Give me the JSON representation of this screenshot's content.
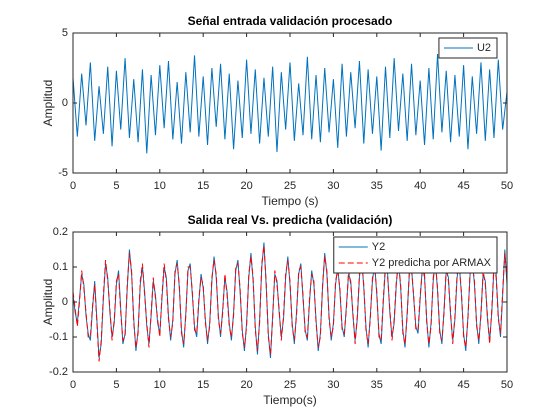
{
  "chart_data": [
    {
      "type": "line",
      "title": "Señal entrada validación procesado",
      "xlabel": "Tiempo (s)",
      "ylabel": "Amplitud",
      "xlim": [
        0,
        50
      ],
      "xticks": [
        0,
        5,
        10,
        15,
        20,
        25,
        30,
        35,
        40,
        45,
        50
      ],
      "ylim": [
        -5,
        5
      ],
      "yticks": [
        -5,
        0,
        5
      ],
      "legend": "northeast",
      "x": [
        0,
        0.5,
        1,
        1.5,
        2,
        2.5,
        3,
        3.5,
        4,
        4.5,
        5,
        5.5,
        6,
        6.5,
        7,
        7.5,
        8,
        8.5,
        9,
        9.5,
        10,
        10.5,
        11,
        11.5,
        12,
        12.5,
        13,
        13.5,
        14,
        14.5,
        15,
        15.5,
        16,
        16.5,
        17,
        17.5,
        18,
        18.5,
        19,
        19.5,
        20,
        20.5,
        21,
        21.5,
        22,
        22.5,
        23,
        23.5,
        24,
        24.5,
        25,
        25.5,
        26,
        26.5,
        27,
        27.5,
        28,
        28.5,
        29,
        29.5,
        30,
        30.5,
        31,
        31.5,
        32,
        32.5,
        33,
        33.5,
        34,
        34.5,
        35,
        35.5,
        36,
        36.5,
        37,
        37.5,
        38,
        38.5,
        39,
        39.5,
        40,
        40.5,
        41,
        41.5,
        42,
        42.5,
        43,
        43.5,
        44,
        44.5,
        45,
        45.5,
        46,
        46.5,
        47,
        47.5,
        48,
        48.5,
        49,
        49.5,
        50
      ],
      "series": [
        {
          "name": "U2",
          "color": "#0072BD",
          "line_style": "-",
          "values": [
            1.8,
            -2.4,
            2.1,
            -1.6,
            2.9,
            -2.7,
            1.2,
            -2.2,
            2.6,
            -3.1,
            2.3,
            -1.9,
            3.2,
            -2.5,
            1.7,
            -2.8,
            2.4,
            -3.6,
            2.0,
            -2.3,
            2.7,
            -1.8,
            3.0,
            -2.6,
            1.5,
            -2.9,
            2.2,
            -2.1,
            3.4,
            -2.4,
            1.9,
            -3.0,
            2.5,
            -1.7,
            2.8,
            -2.6,
            2.1,
            -3.3,
            1.6,
            -2.5,
            3.1,
            -2.2,
            2.4,
            -2.9,
            1.8,
            -2.4,
            2.6,
            -3.5,
            2.2,
            -1.9,
            2.9,
            -2.7,
            1.4,
            -2.3,
            3.3,
            -2.6,
            2.0,
            -2.8,
            2.5,
            -2.1,
            1.7,
            -3.2,
            2.8,
            -2.4,
            2.2,
            -1.8,
            3.0,
            -2.9,
            2.4,
            -2.2,
            1.9,
            -3.4,
            2.6,
            -2.5,
            3.2,
            -2.0,
            2.1,
            -2.7,
            2.8,
            -2.3,
            1.6,
            -3.0,
            2.5,
            -2.6,
            3.5,
            -2.1,
            2.3,
            -2.8,
            2.0,
            -2.4,
            2.7,
            -3.3,
            1.9,
            -2.2,
            2.9,
            -2.7,
            2.4,
            -2.5,
            3.1,
            -1.9,
            0.8
          ]
        }
      ]
    },
    {
      "type": "line",
      "title": "Salida real Vs. predicha (validación)",
      "xlabel": "Tiempo(s)",
      "ylabel": "Amplitud",
      "xlim": [
        0,
        50
      ],
      "xticks": [
        0,
        5,
        10,
        15,
        20,
        25,
        30,
        35,
        40,
        45,
        50
      ],
      "ylim": [
        -0.2,
        0.2
      ],
      "yticks": [
        -0.2,
        -0.1,
        0,
        0.1,
        0.2
      ],
      "legend": "northeast",
      "x": [
        0,
        0.25,
        0.5,
        0.75,
        1,
        1.25,
        1.5,
        1.75,
        2,
        2.25,
        2.5,
        2.75,
        3,
        3.25,
        3.5,
        3.75,
        4,
        4.25,
        4.5,
        4.75,
        5,
        5.25,
        5.5,
        5.75,
        6,
        6.25,
        6.5,
        6.75,
        7,
        7.25,
        7.5,
        7.75,
        8,
        8.25,
        8.5,
        8.75,
        9,
        9.25,
        9.5,
        9.75,
        10,
        10.25,
        10.5,
        10.75,
        11,
        11.25,
        11.5,
        11.75,
        12,
        12.25,
        12.5,
        12.75,
        13,
        13.25,
        13.5,
        13.75,
        14,
        14.25,
        14.5,
        14.75,
        15,
        15.25,
        15.5,
        15.75,
        16,
        16.25,
        16.5,
        16.75,
        17,
        17.25,
        17.5,
        17.75,
        18,
        18.25,
        18.5,
        18.75,
        19,
        19.25,
        19.5,
        19.75,
        20,
        20.25,
        20.5,
        20.75,
        21,
        21.25,
        21.5,
        21.75,
        22,
        22.25,
        22.5,
        22.75,
        23,
        23.25,
        23.5,
        23.75,
        24,
        24.25,
        24.5,
        24.75,
        25,
        25.25,
        25.5,
        25.75,
        26,
        26.25,
        26.5,
        26.75,
        27,
        27.25,
        27.5,
        27.75,
        28,
        28.25,
        28.5,
        28.75,
        29,
        29.25,
        29.5,
        29.75,
        30,
        30.25,
        30.5,
        30.75,
        31,
        31.25,
        31.5,
        31.75,
        32,
        32.25,
        32.5,
        32.75,
        33,
        33.25,
        33.5,
        33.75,
        34,
        34.25,
        34.5,
        34.75,
        35,
        35.25,
        35.5,
        35.75,
        36,
        36.25,
        36.5,
        36.75,
        37,
        37.25,
        37.5,
        37.75,
        38,
        38.25,
        38.5,
        38.75,
        39,
        39.25,
        39.5,
        39.75,
        40,
        40.25,
        40.5,
        40.75,
        41,
        41.25,
        41.5,
        41.75,
        42,
        42.25,
        42.5,
        42.75,
        43,
        43.25,
        43.5,
        43.75,
        44,
        44.25,
        44.5,
        44.75,
        45,
        45.25,
        45.5,
        45.75,
        46,
        46.25,
        46.5,
        46.75,
        47,
        47.25,
        47.5,
        47.75,
        48,
        48.25,
        48.5,
        48.75,
        49,
        49.25,
        49.5,
        49.75,
        50
      ],
      "series": [
        {
          "name": "Y2",
          "color": "#0072BD",
          "line_style": "-",
          "values": [
            0.02,
            -0.03,
            -0.06,
            0.01,
            0.08,
            0.05,
            -0.04,
            -0.09,
            -0.11,
            -0.02,
            0.06,
            -0.05,
            -0.16,
            -0.12,
            0.01,
            0.11,
            0.07,
            -0.03,
            -0.1,
            -0.06,
            0.05,
            0.09,
            -0.02,
            -0.12,
            -0.09,
            0.04,
            0.15,
            0.08,
            -0.05,
            -0.14,
            -0.08,
            0.05,
            0.1,
            0.03,
            -0.07,
            -0.12,
            -0.04,
            0.06,
            0.02,
            -0.06,
            -0.09,
            0.01,
            0.1,
            0.07,
            -0.04,
            -0.11,
            -0.05,
            0.08,
            0.12,
            0.04,
            -0.08,
            -0.13,
            -0.03,
            0.09,
            0.11,
            0.02,
            -0.07,
            -0.1,
            0.0,
            0.08,
            0.04,
            -0.05,
            -0.12,
            -0.06,
            0.06,
            0.13,
            0.07,
            -0.04,
            -0.1,
            -0.02,
            0.07,
            0.03,
            -0.06,
            -0.11,
            -0.03,
            0.09,
            0.12,
            0.03,
            -0.08,
            -0.14,
            -0.06,
            0.07,
            0.14,
            0.06,
            -0.07,
            -0.15,
            -0.05,
            0.1,
            0.17,
            0.05,
            -0.09,
            -0.16,
            -0.04,
            0.08,
            0.06,
            -0.03,
            -0.1,
            -0.05,
            0.07,
            0.13,
            0.05,
            -0.06,
            -0.12,
            -0.03,
            0.08,
            0.11,
            0.01,
            -0.08,
            -0.11,
            0.0,
            0.09,
            0.05,
            -0.05,
            -0.14,
            -0.09,
            0.04,
            0.14,
            0.08,
            -0.04,
            -0.11,
            -0.06,
            0.05,
            0.1,
            0.03,
            -0.07,
            -0.1,
            -0.01,
            0.08,
            0.06,
            -0.04,
            -0.11,
            -0.05,
            0.07,
            0.13,
            0.04,
            -0.07,
            -0.13,
            -0.04,
            0.06,
            0.11,
            0.02,
            -0.09,
            -0.12,
            0.0,
            0.1,
            0.08,
            -0.03,
            -0.1,
            -0.06,
            0.05,
            0.12,
            0.04,
            -0.08,
            -0.13,
            -0.03,
            0.08,
            0.1,
            0.01,
            -0.07,
            -0.09,
            0.01,
            0.1,
            0.07,
            -0.05,
            -0.13,
            -0.06,
            0.06,
            0.12,
            0.03,
            -0.08,
            -0.12,
            -0.02,
            0.09,
            0.07,
            -0.04,
            -0.11,
            -0.05,
            0.07,
            0.11,
            0.02,
            -0.09,
            -0.14,
            -0.04,
            0.08,
            0.12,
            0.05,
            -0.06,
            -0.12,
            -0.03,
            0.08,
            0.06,
            -0.05,
            -0.11,
            -0.03,
            0.1,
            0.08,
            -0.04,
            -0.1,
            0.02,
            0.15,
            0.05
          ]
        },
        {
          "name": "Y2 predicha por ARMAX",
          "color": "#FF0000",
          "line_style": "--",
          "values": [
            0.03,
            -0.02,
            -0.07,
            0.0,
            0.09,
            0.04,
            -0.03,
            -0.1,
            -0.1,
            -0.01,
            0.05,
            -0.06,
            -0.17,
            -0.11,
            0.02,
            0.12,
            0.06,
            -0.02,
            -0.11,
            -0.05,
            0.06,
            0.08,
            -0.03,
            -0.11,
            -0.1,
            0.05,
            0.14,
            0.09,
            -0.06,
            -0.13,
            -0.09,
            0.06,
            0.11,
            0.02,
            -0.06,
            -0.13,
            -0.03,
            0.07,
            0.01,
            -0.05,
            -0.1,
            0.02,
            0.11,
            0.06,
            -0.05,
            -0.1,
            -0.06,
            0.09,
            0.11,
            0.05,
            -0.09,
            -0.12,
            -0.04,
            0.1,
            0.1,
            0.03,
            -0.08,
            -0.09,
            0.01,
            0.07,
            0.05,
            -0.06,
            -0.11,
            -0.07,
            0.07,
            0.12,
            0.08,
            -0.05,
            -0.09,
            -0.03,
            0.08,
            0.02,
            -0.07,
            -0.1,
            -0.04,
            0.1,
            0.11,
            0.04,
            -0.09,
            -0.13,
            -0.07,
            0.08,
            0.13,
            0.07,
            -0.08,
            -0.14,
            -0.06,
            0.11,
            0.16,
            0.06,
            -0.1,
            -0.15,
            -0.05,
            0.09,
            0.05,
            -0.02,
            -0.11,
            -0.04,
            0.08,
            0.12,
            0.06,
            -0.07,
            -0.11,
            -0.04,
            0.09,
            0.1,
            0.02,
            -0.09,
            -0.1,
            0.01,
            0.08,
            0.06,
            -0.06,
            -0.13,
            -0.1,
            0.05,
            0.13,
            0.09,
            -0.05,
            -0.1,
            -0.07,
            0.06,
            0.09,
            0.04,
            -0.08,
            -0.09,
            -0.02,
            0.09,
            0.05,
            -0.03,
            -0.12,
            -0.04,
            0.08,
            0.12,
            0.05,
            -0.08,
            -0.12,
            -0.05,
            0.07,
            0.1,
            0.03,
            -0.1,
            -0.11,
            0.01,
            0.11,
            0.07,
            -0.02,
            -0.11,
            -0.05,
            0.06,
            0.11,
            0.05,
            -0.09,
            -0.12,
            -0.04,
            0.09,
            0.09,
            0.02,
            -0.08,
            -0.08,
            0.02,
            0.09,
            0.08,
            -0.06,
            -0.12,
            -0.07,
            0.07,
            0.11,
            0.04,
            -0.09,
            -0.11,
            -0.03,
            0.1,
            0.06,
            -0.03,
            -0.12,
            -0.04,
            0.08,
            0.1,
            0.03,
            -0.1,
            -0.13,
            -0.05,
            0.09,
            0.11,
            0.06,
            -0.07,
            -0.11,
            -0.04,
            0.09,
            0.05,
            -0.04,
            -0.12,
            -0.02,
            0.11,
            0.07,
            -0.05,
            -0.09,
            0.03,
            0.14,
            0.06
          ]
        }
      ]
    }
  ]
}
